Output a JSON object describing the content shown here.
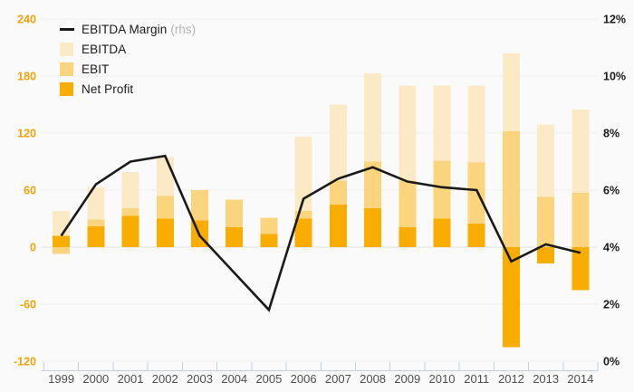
{
  "legend": {
    "items": [
      {
        "label": "EBITDA Margin",
        "suffix": "(rhs)",
        "swatch": "line",
        "color": "#1a1a1a"
      },
      {
        "label": "EBITDA",
        "suffix": "",
        "swatch": "square",
        "color": "#FCE9C5"
      },
      {
        "label": "EBIT",
        "suffix": "",
        "swatch": "square",
        "color": "#FBD47E"
      },
      {
        "label": "Net Profit",
        "suffix": "",
        "swatch": "square",
        "color": "#F9AD00"
      }
    ]
  },
  "chart_data": {
    "type": "bar",
    "subtype": "overlapped-bars-with-line",
    "title": "",
    "categories": [
      "1999",
      "2000",
      "2001",
      "2002",
      "2003",
      "2004",
      "2005",
      "2006",
      "2007",
      "2008",
      "2009",
      "2010",
      "2011",
      "2012",
      "2013",
      "2014"
    ],
    "series": [
      {
        "name": "EBITDA",
        "type": "bar",
        "axis": "left",
        "color": "#FCE9C5",
        "values": [
          38,
          63,
          79,
          95,
          60,
          50,
          31,
          116,
          150,
          183,
          170,
          170,
          170,
          204,
          129,
          145
        ]
      },
      {
        "name": "EBIT",
        "type": "bar",
        "axis": "left",
        "color": "#FBD47E",
        "values": [
          -7,
          29,
          41,
          54,
          60,
          50,
          31,
          38,
          70,
          90,
          70,
          91,
          89,
          122,
          53,
          57
        ]
      },
      {
        "name": "Net Profit",
        "type": "bar",
        "axis": "left",
        "color": "#F9AD00",
        "values": [
          12,
          22,
          33,
          30,
          28,
          21,
          14,
          30,
          45,
          41,
          21,
          30,
          25,
          -105,
          -17,
          -45
        ]
      },
      {
        "name": "EBITDA Margin (rhs)",
        "type": "line",
        "axis": "right",
        "color": "#1a1a1a",
        "values": [
          4.4,
          6.2,
          7.0,
          7.2,
          4.4,
          3.1,
          1.8,
          5.7,
          6.4,
          6.8,
          6.3,
          6.1,
          6.0,
          3.5,
          4.1,
          3.8
        ]
      }
    ],
    "left_axis": {
      "min": -120,
      "max": 240,
      "tick_step": 60,
      "tick_labels": [
        "240",
        "180",
        "120",
        "60",
        "0",
        "-60",
        "-120"
      ],
      "tick_values": [
        240,
        180,
        120,
        60,
        0,
        -60,
        -120
      ],
      "label_color": "#F0A30A"
    },
    "right_axis": {
      "min": 0,
      "max": 12,
      "tick_step": 2,
      "tick_labels": [
        "12%",
        "10%",
        "8%",
        "6%",
        "4%",
        "2%",
        "0%"
      ],
      "tick_values": [
        12,
        10,
        8,
        6,
        4,
        2,
        0
      ],
      "label_color": "#1a1a1a"
    },
    "grid": true,
    "legend_position": "top-left"
  },
  "colors": {
    "background": "#fafafa",
    "gridline": "#eeeeee",
    "zero_line": "#e2e2e2",
    "x_axis_line": "#c3d0e4",
    "x_label": "#4d4d4d",
    "line_series": "#1a1a1a"
  }
}
